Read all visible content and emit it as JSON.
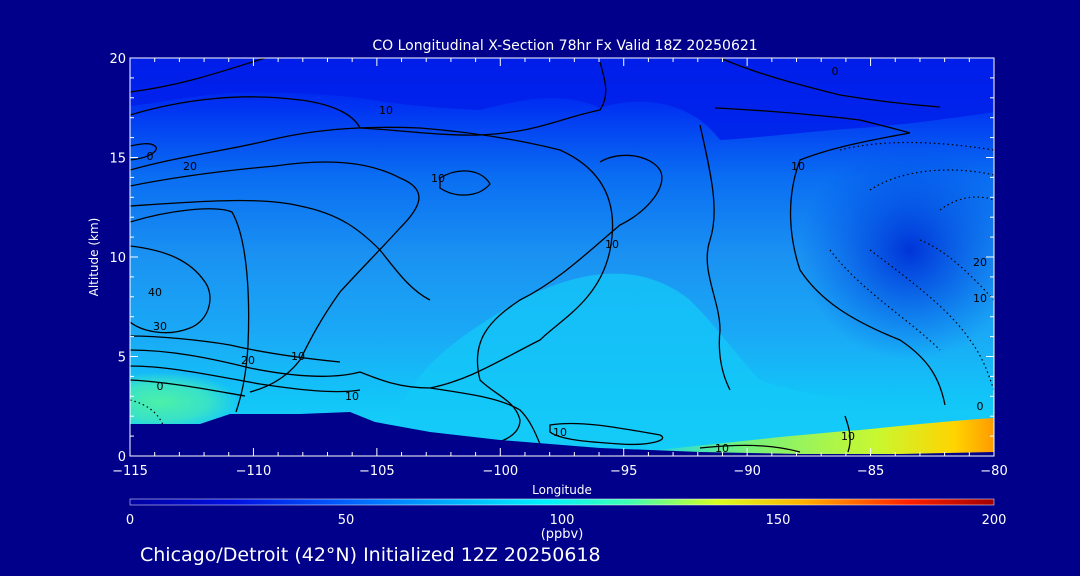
{
  "chart_data": {
    "type": "heatmap",
    "title": "CO Longitudinal X-Section 78hr  Fx Valid 18Z 20250621",
    "xlabel": "Longitude",
    "ylabel": "Altitude (km)",
    "xlim": [
      -115,
      -80
    ],
    "ylim": [
      0,
      20
    ],
    "x_ticks": [
      "-115",
      "-110",
      "-105",
      "-100",
      "-95",
      "-90",
      "-85",
      "-80"
    ],
    "y_ticks": [
      "0",
      "5",
      "10",
      "15",
      "20"
    ],
    "colorbar": {
      "label": "(ppbv)",
      "range": [
        0,
        200
      ],
      "ticks": [
        "0",
        "50",
        "100",
        "150",
        "200"
      ]
    },
    "contour_labels": [
      "10",
      "10",
      "20",
      "10",
      "10",
      "0",
      "10",
      "40",
      "30",
      "20",
      "0",
      "10",
      "10",
      "10",
      "20",
      "10",
      "0",
      "10",
      "0"
    ],
    "footer": "Chicago/Detroit (42°N) Initialized 12Z 20250618"
  },
  "colors": {
    "background": "#00008b",
    "terrain": "#00008b",
    "text": "#ffffff",
    "contour": "#000000"
  }
}
